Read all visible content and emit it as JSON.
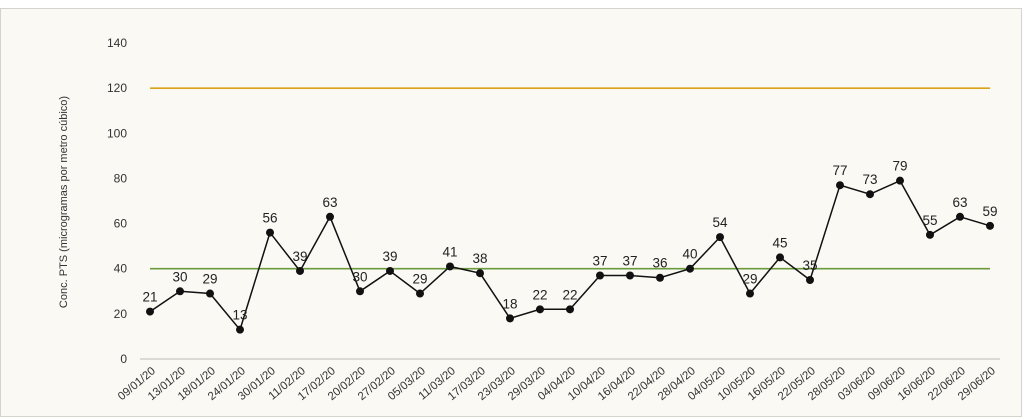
{
  "chart_data": {
    "type": "line",
    "title": "",
    "title_partial_visible": "",
    "xlabel": "",
    "ylabel": "Conc. PTS (microgramas por metro cúbico)",
    "ylim": [
      0,
      140
    ],
    "yticks": [
      0,
      20,
      40,
      60,
      80,
      100,
      120,
      140
    ],
    "grid": false,
    "background_color": "#fbf9f4",
    "categories": [
      "09/01/20",
      "13/01/20",
      "18/01/20",
      "24/01/20",
      "30/01/20",
      "11/02/20",
      "17/02/20",
      "20/02/20",
      "27/02/20",
      "05/03/20",
      "11/03/20",
      "17/03/20",
      "23/03/20",
      "29/03/20",
      "04/04/20",
      "10/04/20",
      "16/04/20",
      "22/04/20",
      "28/04/20",
      "04/05/20",
      "10/05/20",
      "16/05/20",
      "22/05/20",
      "28/05/20",
      "03/06/20",
      "09/06/20",
      "16/06/20",
      "22/06/20",
      "29/06/20"
    ],
    "series": [
      {
        "color": "#111111",
        "values": [
          21,
          30,
          29,
          13,
          56,
          39,
          63,
          30,
          39,
          29,
          41,
          38,
          18,
          22,
          22,
          37,
          37,
          36,
          40,
          54,
          29,
          45,
          35,
          77,
          73,
          79,
          55,
          63,
          59
        ]
      }
    ],
    "reference_lines": [
      {
        "value": 120,
        "color": "#d9a21b"
      },
      {
        "value": 40,
        "color": "#6a9a3c"
      }
    ]
  }
}
